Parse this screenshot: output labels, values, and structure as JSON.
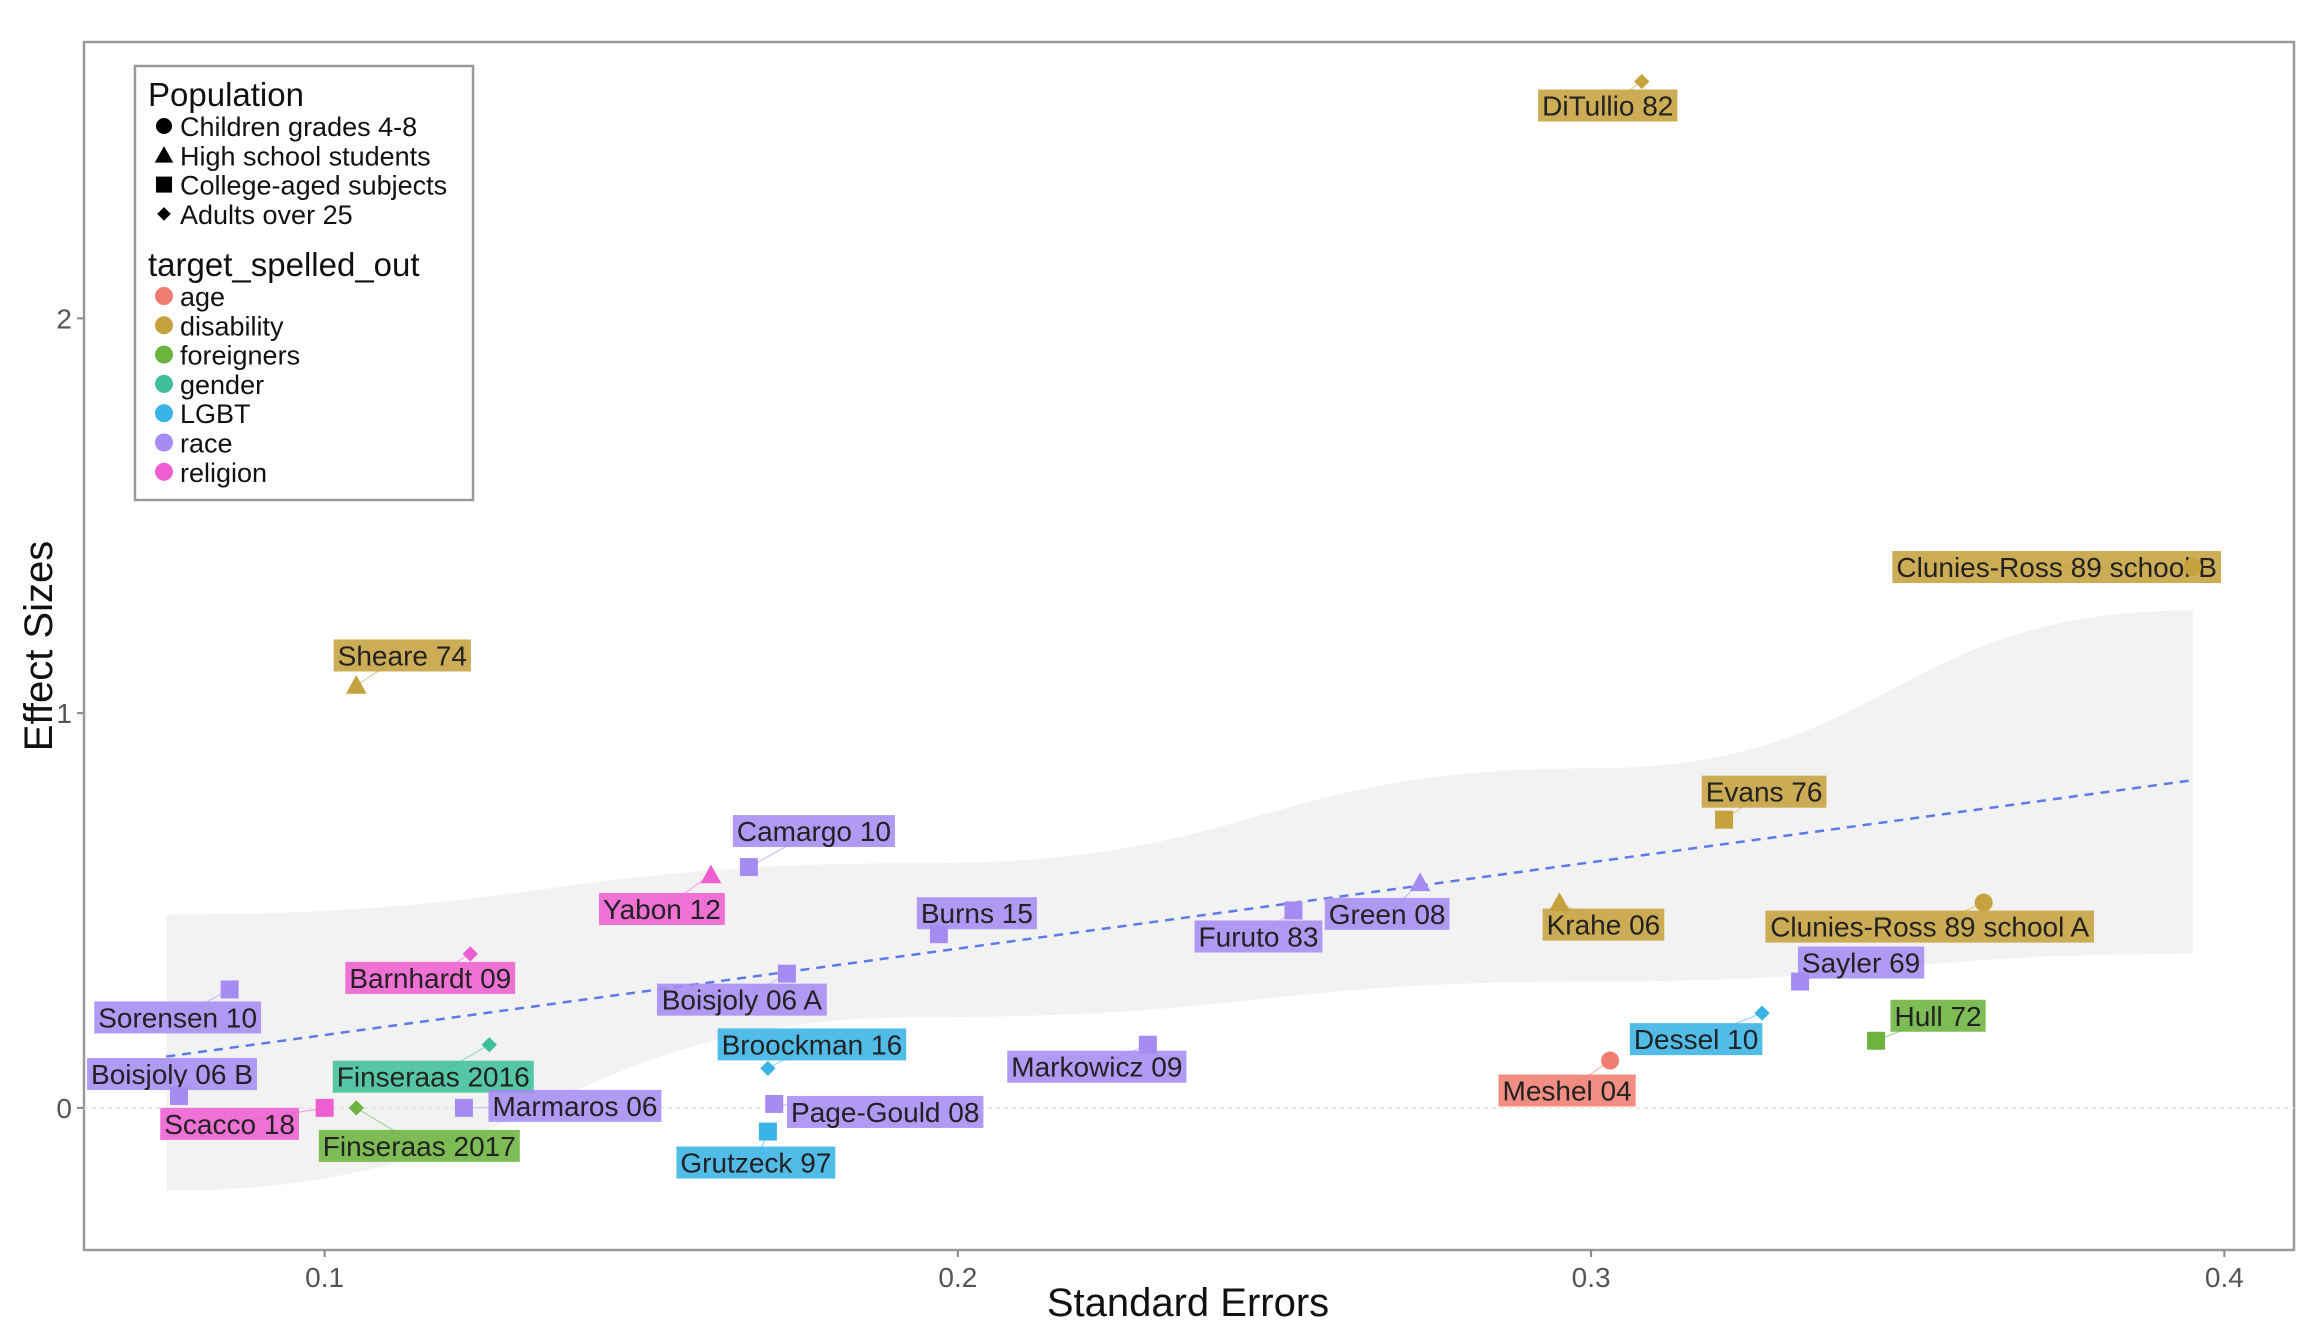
{
  "chart_data": {
    "type": "scatter",
    "title": "",
    "xlabel": "Standard Errors",
    "ylabel": "Effect Sizes",
    "xlim": [
      0.062,
      0.411
    ],
    "ylim": [
      -0.36,
      2.7
    ],
    "xticks": [
      {
        "value": 0.1,
        "label": "0.1"
      },
      {
        "value": 0.2,
        "label": "0.2"
      },
      {
        "value": 0.3,
        "label": "0.3"
      },
      {
        "value": 0.4,
        "label": "0.4"
      }
    ],
    "yticks": [
      {
        "value": 0,
        "label": "0"
      },
      {
        "value": 1,
        "label": "1"
      },
      {
        "value": 2,
        "label": "2"
      }
    ],
    "grid": false,
    "legend_position": "top-left",
    "legend": {
      "shape_title": "Population",
      "shapes": [
        {
          "label": "Children grades 4-8",
          "shape": "circle"
        },
        {
          "label": "High school students",
          "shape": "triangle"
        },
        {
          "label": "College-aged subjects",
          "shape": "square"
        },
        {
          "label": "Adults over 25",
          "shape": "diamond"
        }
      ],
      "color_title": "target_spelled_out",
      "colors": [
        {
          "label": "age",
          "color": "#f07d72"
        },
        {
          "label": "disability",
          "color": "#c5a23d"
        },
        {
          "label": "foreigners",
          "color": "#6cb33f"
        },
        {
          "label": "gender",
          "color": "#3fc09a"
        },
        {
          "label": "LGBT",
          "color": "#3ab3e6"
        },
        {
          "label": "race",
          "color": "#a58cf2"
        },
        {
          "label": "religion",
          "color": "#ee5ed0"
        }
      ]
    },
    "trend_line": {
      "style": "dashed",
      "color": "#5b7be8",
      "x": [
        0.075,
        0.395
      ],
      "y": [
        0.13,
        0.83
      ]
    },
    "confidence_band": {
      "x": [
        0.075,
        0.195,
        0.3,
        0.395
      ],
      "upper": [
        0.49,
        0.62,
        0.86,
        1.26
      ],
      "lower": [
        -0.21,
        0.23,
        0.32,
        0.39
      ]
    },
    "points": [
      {
        "label": "DiTullio 82",
        "x": 0.308,
        "y": 2.6,
        "shape": "diamond",
        "target": "disability"
      },
      {
        "label": "Clunies-Ross 89 school B",
        "x": 0.395,
        "y": 1.37,
        "shape": "circle",
        "target": "disability"
      },
      {
        "label": "Sheare 74",
        "x": 0.105,
        "y": 1.07,
        "shape": "triangle",
        "target": "disability"
      },
      {
        "label": "Evans 76",
        "x": 0.321,
        "y": 0.73,
        "shape": "square",
        "target": "disability"
      },
      {
        "label": "Camargo 10",
        "x": 0.167,
        "y": 0.61,
        "shape": "square",
        "target": "race"
      },
      {
        "label": "Yabon 12",
        "x": 0.161,
        "y": 0.59,
        "shape": "triangle",
        "target": "religion"
      },
      {
        "label": "Green 08",
        "x": 0.273,
        "y": 0.57,
        "shape": "triangle",
        "target": "race"
      },
      {
        "label": "Krahe 06",
        "x": 0.295,
        "y": 0.52,
        "shape": "triangle",
        "target": "disability"
      },
      {
        "label": "Clunies-Ross 89 school A",
        "x": 0.362,
        "y": 0.52,
        "shape": "circle",
        "target": "disability"
      },
      {
        "label": "Furuto 83",
        "x": 0.253,
        "y": 0.5,
        "shape": "square",
        "target": "race"
      },
      {
        "label": "Burns 15",
        "x": 0.197,
        "y": 0.44,
        "shape": "square",
        "target": "race"
      },
      {
        "label": "Barnhardt 09",
        "x": 0.123,
        "y": 0.39,
        "shape": "diamond",
        "target": "religion"
      },
      {
        "label": "Boisjoly 06 A",
        "x": 0.173,
        "y": 0.34,
        "shape": "square",
        "target": "race"
      },
      {
        "label": "Sorensen 10",
        "x": 0.085,
        "y": 0.3,
        "shape": "square",
        "target": "race"
      },
      {
        "label": "Sayler 69",
        "x": 0.333,
        "y": 0.32,
        "shape": "square",
        "target": "race"
      },
      {
        "label": "Dessel 10",
        "x": 0.327,
        "y": 0.24,
        "shape": "diamond",
        "target": "LGBT"
      },
      {
        "label": "Hull 72",
        "x": 0.345,
        "y": 0.17,
        "shape": "square",
        "target": "foreigners"
      },
      {
        "label": "Markowicz 09",
        "x": 0.23,
        "y": 0.16,
        "shape": "square",
        "target": "race"
      },
      {
        "label": "Finseraas 2016",
        "x": 0.126,
        "y": 0.16,
        "shape": "diamond",
        "target": "gender"
      },
      {
        "label": "Meshel 04",
        "x": 0.303,
        "y": 0.12,
        "shape": "circle",
        "target": "age"
      },
      {
        "label": "Broockman 16",
        "x": 0.17,
        "y": 0.1,
        "shape": "diamond",
        "target": "LGBT"
      },
      {
        "label": "Boisjoly 06 B",
        "x": 0.077,
        "y": 0.03,
        "shape": "square",
        "target": "race"
      },
      {
        "label": "Marmaros 06",
        "x": 0.122,
        "y": 0.0,
        "shape": "square",
        "target": "race"
      },
      {
        "label": "Page-Gould 08",
        "x": 0.171,
        "y": 0.01,
        "shape": "square",
        "target": "race"
      },
      {
        "label": "Scacco 18",
        "x": 0.1,
        "y": 0.0,
        "shape": "square",
        "target": "religion"
      },
      {
        "label": "Finseraas 2017",
        "x": 0.105,
        "y": 0.0,
        "shape": "diamond",
        "target": "foreigners"
      },
      {
        "label": "Grutzeck 97",
        "x": 0.17,
        "y": -0.06,
        "shape": "square",
        "target": "LGBT"
      }
    ]
  }
}
